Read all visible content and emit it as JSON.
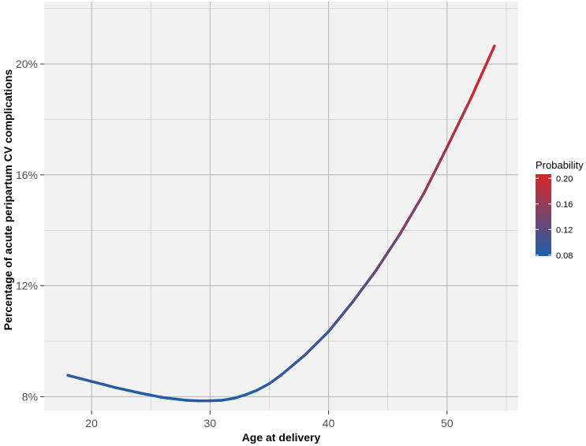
{
  "chart_data": {
    "type": "line",
    "title": "",
    "xlabel": "Age at delivery",
    "ylabel": "Percentage of acute peripartum CV complications",
    "xlim": [
      16,
      56
    ],
    "ylim": [
      0.075,
      0.2225
    ],
    "x_ticks": [
      20,
      30,
      40,
      50
    ],
    "x_tick_labels": [
      "20",
      "30",
      "40",
      "50"
    ],
    "y_ticks": [
      0.08,
      0.12,
      0.16,
      0.2
    ],
    "y_tick_labels": [
      "8%",
      "12%",
      "16%",
      "20%"
    ],
    "grid": true,
    "series": [
      {
        "x": [
          18,
          20,
          22,
          24,
          26,
          28,
          29,
          30,
          31,
          32,
          33,
          34,
          35,
          36,
          38,
          40,
          42,
          44,
          46,
          48,
          50,
          52,
          54
        ],
        "y": [
          0.0877,
          0.0855,
          0.0833,
          0.0814,
          0.0797,
          0.0787,
          0.0785,
          0.0785,
          0.0787,
          0.0794,
          0.0807,
          0.0824,
          0.0847,
          0.0878,
          0.095,
          0.1035,
          0.114,
          0.1255,
          0.1385,
          0.153,
          0.17,
          0.1875,
          0.2065
        ]
      }
    ],
    "legend": {
      "title": "Probability",
      "position": "right",
      "labels": [
        "0.20",
        "0.16",
        "0.12",
        "0.08"
      ],
      "values": [
        0.2,
        0.16,
        0.12,
        0.08
      ],
      "range": [
        0.0785,
        0.2065
      ],
      "color_low": "#1f5fa8",
      "color_high": "#d9262b"
    },
    "colors": {
      "panel_background": "#f2f2f2",
      "grid_major": "#b4b4b4",
      "grid_minor": "#d6d6d6"
    }
  }
}
